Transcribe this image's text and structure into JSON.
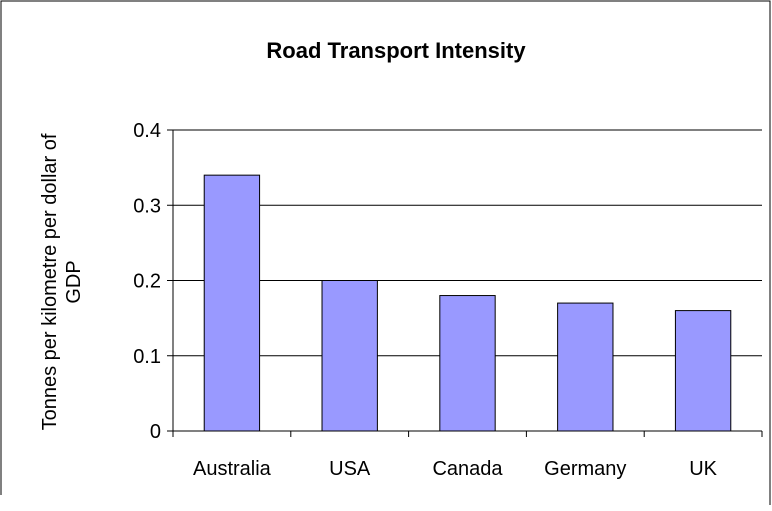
{
  "chart_data": {
    "type": "bar",
    "title": "Road Transport Intensity",
    "ylabel_lines": [
      "Tonnes per kilometre per dollar of",
      "GDP"
    ],
    "xlabel": "",
    "categories": [
      "Australia",
      "USA",
      "Canada",
      "Germany",
      "UK"
    ],
    "values": [
      0.34,
      0.2,
      0.18,
      0.17,
      0.16
    ],
    "ylim": [
      0,
      0.4
    ],
    "yticks": [
      "0",
      "0.1",
      "0.2",
      "0.3",
      "0.4"
    ],
    "ytick_values": [
      0,
      0.1,
      0.2,
      0.3,
      0.4
    ],
    "grid": true,
    "legend": "none",
    "colors": {
      "bar_fill": "#9999ff",
      "bar_stroke": "#000000",
      "grid": "#000000",
      "axis": "#000000",
      "border": "#000000"
    }
  }
}
